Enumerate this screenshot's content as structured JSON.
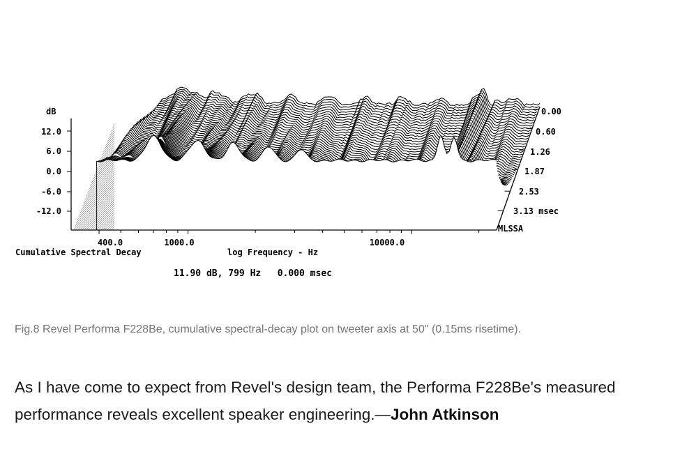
{
  "chart_data": {
    "type": "waterfall",
    "title": "Cumulative Spectral Decay",
    "xlabel": "log Frequency - Hz",
    "ylabel": "dB",
    "x_scale": "log",
    "x_ticks": [
      {
        "value": 400,
        "label": "400.0"
      },
      {
        "value": 1000,
        "label": "1000.0"
      },
      {
        "value": 10000,
        "label": "10000.0"
      }
    ],
    "y_ticks": [
      {
        "value": 12,
        "label": "12.0"
      },
      {
        "value": 6,
        "label": "6.0"
      },
      {
        "value": 0,
        "label": "0.0"
      },
      {
        "value": -6,
        "label": "-6.0"
      },
      {
        "value": -12,
        "label": "-12.0"
      }
    ],
    "time_ticks": [
      {
        "value": 0.0,
        "label": "0.00"
      },
      {
        "value": 0.6,
        "label": "0.60"
      },
      {
        "value": 1.26,
        "label": "1.26"
      },
      {
        "value": 1.87,
        "label": "1.87"
      },
      {
        "value": 2.53,
        "label": "2.53"
      },
      {
        "value": 3.13,
        "label": "3.13 msec"
      }
    ],
    "time_unit": "msec",
    "software_label": "MLSSA",
    "cursor_readout": "11.90 dB, 799 Hz   0.000 msec",
    "frequency_range_hz": [
      300,
      24000
    ],
    "db_range": [
      -15,
      15
    ],
    "time_range_msec": [
      0,
      3.13
    ],
    "slice_count": 48,
    "colors": {
      "line": "#000000",
      "background": "#ffffff"
    }
  },
  "caption": "Fig.8 Revel Performa F228Be, cumulative spectral-decay plot on tweeter axis at 50\" (0.15ms risetime).",
  "article": {
    "text": "As I have come to expect from Revel's design team, the Performa F228Be's measured performance reveals excellent speaker engineering.—",
    "author": "John Atkinson"
  }
}
